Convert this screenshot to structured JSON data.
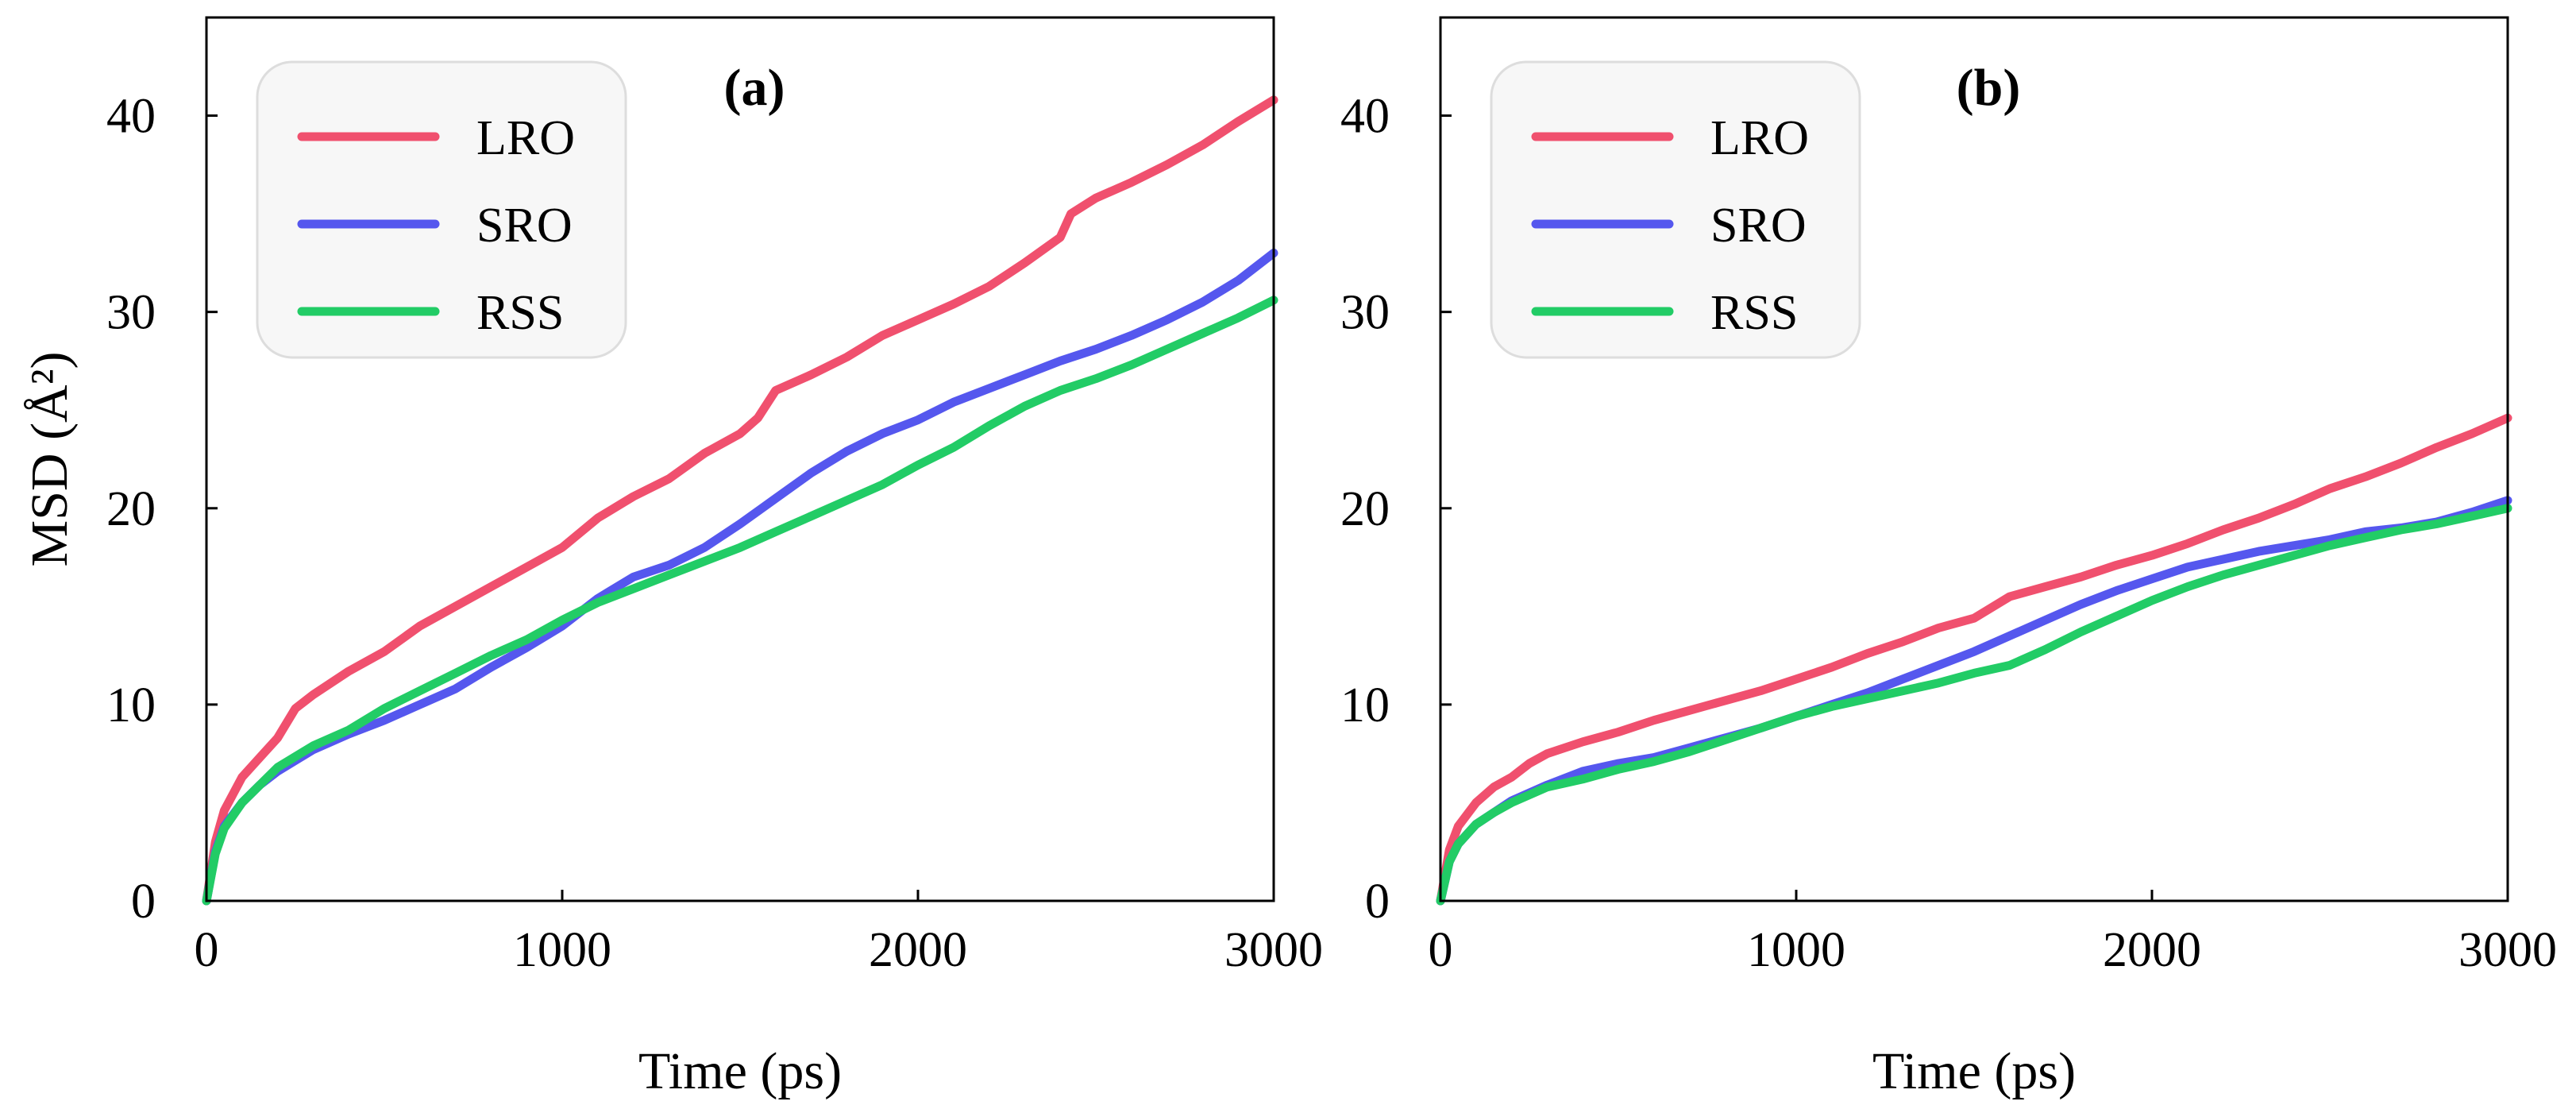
{
  "chart_data": [
    {
      "type": "line",
      "panel_label": "(a)",
      "xlabel": "Time (ps)",
      "ylabel": "MSD (Å²)",
      "xlim": [
        0,
        3000
      ],
      "ylim": [
        0,
        45
      ],
      "xticks": [
        0,
        1000,
        2000,
        3000
      ],
      "yticks": [
        0,
        10,
        20,
        30,
        40
      ],
      "legend_position": "top-left",
      "series": [
        {
          "name": "LRO",
          "color": "#f0506e",
          "x": [
            0,
            25,
            50,
            100,
            150,
            200,
            250,
            300,
            400,
            500,
            600,
            700,
            800,
            900,
            1000,
            1100,
            1200,
            1300,
            1400,
            1500,
            1550,
            1600,
            1700,
            1800,
            1900,
            2000,
            2100,
            2200,
            2300,
            2400,
            2430,
            2500,
            2600,
            2700,
            2800,
            2900,
            3000
          ],
          "y": [
            0,
            3,
            4.6,
            6.3,
            7.3,
            8.3,
            9.8,
            10.5,
            11.7,
            12.7,
            14,
            15,
            16,
            17,
            18,
            19.5,
            20.6,
            21.5,
            22.8,
            23.8,
            24.6,
            26,
            26.8,
            27.7,
            28.8,
            29.6,
            30.4,
            31.3,
            32.5,
            33.8,
            35,
            35.8,
            36.6,
            37.5,
            38.5,
            39.7,
            40.8
          ]
        },
        {
          "name": "SRO",
          "color": "#5557ee",
          "x": [
            0,
            25,
            50,
            100,
            150,
            200,
            300,
            400,
            500,
            600,
            700,
            800,
            900,
            1000,
            1100,
            1200,
            1300,
            1400,
            1500,
            1600,
            1700,
            1800,
            1900,
            2000,
            2100,
            2200,
            2300,
            2400,
            2500,
            2600,
            2700,
            2800,
            2900,
            3000
          ],
          "y": [
            0,
            2.5,
            3.8,
            5,
            5.9,
            6.6,
            7.7,
            8.5,
            9.2,
            10,
            10.8,
            11.9,
            12.9,
            14,
            15.4,
            16.5,
            17.1,
            18,
            19.2,
            20.5,
            21.8,
            22.9,
            23.8,
            24.5,
            25.4,
            26.1,
            26.8,
            27.5,
            28.1,
            28.8,
            29.6,
            30.5,
            31.6,
            33
          ]
        },
        {
          "name": "RSS",
          "color": "#22cc66",
          "x": [
            0,
            25,
            50,
            100,
            150,
            200,
            300,
            400,
            500,
            600,
            700,
            800,
            900,
            1000,
            1100,
            1200,
            1300,
            1400,
            1500,
            1600,
            1700,
            1800,
            1900,
            2000,
            2100,
            2200,
            2300,
            2400,
            2500,
            2600,
            2700,
            2800,
            2900,
            3000
          ],
          "y": [
            0,
            2.4,
            3.7,
            5,
            5.9,
            6.8,
            7.9,
            8.7,
            9.8,
            10.7,
            11.6,
            12.5,
            13.3,
            14.3,
            15.2,
            15.9,
            16.6,
            17.3,
            18,
            18.8,
            19.6,
            20.4,
            21.2,
            22.2,
            23.1,
            24.2,
            25.2,
            26,
            26.6,
            27.3,
            28.1,
            28.9,
            29.7,
            30.6
          ]
        }
      ]
    },
    {
      "type": "line",
      "panel_label": "(b)",
      "xlabel": "Time (ps)",
      "ylabel": "",
      "xlim": [
        0,
        3000
      ],
      "ylim": [
        0,
        45
      ],
      "xticks": [
        0,
        1000,
        2000,
        3000
      ],
      "yticks": [
        0,
        10,
        20,
        30,
        40
      ],
      "legend_position": "top-left",
      "series": [
        {
          "name": "LRO",
          "color": "#f0506e",
          "x": [
            0,
            25,
            50,
            100,
            150,
            200,
            250,
            300,
            400,
            500,
            600,
            700,
            800,
            900,
            1000,
            1100,
            1200,
            1300,
            1400,
            1500,
            1600,
            1700,
            1800,
            1900,
            2000,
            2100,
            2200,
            2300,
            2400,
            2500,
            2600,
            2700,
            2800,
            2900,
            3000
          ],
          "y": [
            0,
            2.6,
            3.8,
            5,
            5.8,
            6.3,
            7,
            7.5,
            8.1,
            8.6,
            9.2,
            9.7,
            10.2,
            10.7,
            11.3,
            11.9,
            12.6,
            13.2,
            13.9,
            14.4,
            15.5,
            16,
            16.5,
            17.1,
            17.6,
            18.2,
            18.9,
            19.5,
            20.2,
            21,
            21.6,
            22.3,
            23.1,
            23.8,
            24.6
          ]
        },
        {
          "name": "SRO",
          "color": "#5557ee",
          "x": [
            0,
            25,
            50,
            100,
            150,
            200,
            300,
            400,
            500,
            600,
            700,
            800,
            900,
            1000,
            1100,
            1200,
            1300,
            1400,
            1500,
            1600,
            1700,
            1800,
            1900,
            2000,
            2100,
            2200,
            2300,
            2400,
            2500,
            2600,
            2700,
            2800,
            2900,
            3000
          ],
          "y": [
            0,
            2,
            2.9,
            3.9,
            4.5,
            5.1,
            5.9,
            6.6,
            7,
            7.3,
            7.8,
            8.3,
            8.8,
            9.4,
            10,
            10.6,
            11.3,
            12,
            12.7,
            13.5,
            14.3,
            15.1,
            15.8,
            16.4,
            17,
            17.4,
            17.8,
            18.1,
            18.4,
            18.8,
            19,
            19.3,
            19.8,
            20.4
          ]
        },
        {
          "name": "RSS",
          "color": "#22cc66",
          "x": [
            0,
            25,
            50,
            100,
            150,
            200,
            300,
            400,
            500,
            600,
            700,
            800,
            900,
            1000,
            1100,
            1200,
            1300,
            1400,
            1500,
            1600,
            1700,
            1800,
            1900,
            2000,
            2100,
            2200,
            2300,
            2400,
            2500,
            2600,
            2700,
            2800,
            2900,
            3000
          ],
          "y": [
            0,
            2,
            2.9,
            3.9,
            4.5,
            5,
            5.8,
            6.2,
            6.7,
            7.1,
            7.6,
            8.2,
            8.8,
            9.4,
            9.9,
            10.3,
            10.7,
            11.1,
            11.6,
            12,
            12.8,
            13.7,
            14.5,
            15.3,
            16,
            16.6,
            17.1,
            17.6,
            18.1,
            18.5,
            18.9,
            19.2,
            19.6,
            20
          ]
        }
      ]
    }
  ]
}
